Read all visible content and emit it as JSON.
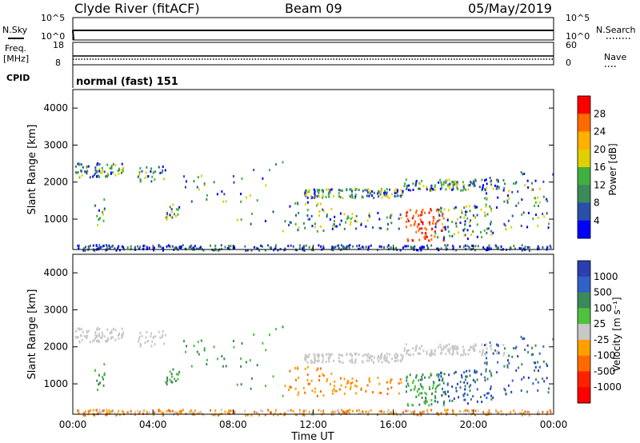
{
  "header": {
    "station": "Clyde River (fitACF)",
    "beam": "Beam 09",
    "date": "05/May/2019"
  },
  "panels": {
    "nsky_label": "N.Sky",
    "nsearch_label": "N.Search",
    "freq_label_1": "Freq.",
    "freq_label_2": "[MHz]",
    "nave_label": "Nave",
    "cpid_label": "CPID",
    "cpid_value": "normal (fast) 151",
    "noise_ticks_left": [
      "10^5",
      "10^0"
    ],
    "noise_ticks_right": [
      "10^5",
      "10^0"
    ],
    "freq_ticks": [
      "18",
      "8"
    ],
    "nave_ticks": [
      "60",
      "0"
    ]
  },
  "chart_data": [
    {
      "type": "heatmap",
      "name": "power",
      "ylabel": "Slant Range [km]",
      "xlabel": "",
      "ylim": [
        180,
        4500
      ],
      "xlim": [
        0,
        24
      ],
      "y_ticks": [
        "1000",
        "2000",
        "3000",
        "4000"
      ],
      "colorbar": {
        "label": "Power [dB]",
        "ticks": [
          "28",
          "24",
          "20",
          "16",
          "12",
          "8",
          "4"
        ],
        "colors": [
          "#ff0000",
          "#ff6a00",
          "#ffb000",
          "#e0d000",
          "#40b040",
          "#3a8a5a",
          "#2a4fa8",
          "#0000ff"
        ]
      }
    },
    {
      "type": "heatmap",
      "name": "velocity",
      "ylabel": "Slant Range [km]",
      "xlabel": "Time UT",
      "ylim": [
        180,
        4500
      ],
      "xlim": [
        0,
        24
      ],
      "y_ticks": [
        "1000",
        "2000",
        "3000",
        "4000"
      ],
      "x_ticks": [
        "00:00",
        "04:00",
        "08:00",
        "12:00",
        "16:00",
        "20:00",
        "00:00"
      ],
      "colorbar": {
        "label": "Velocity [m s⁻¹]",
        "ticks": [
          "1000",
          "500",
          "100",
          "25",
          "-25",
          "-100",
          "-500",
          "-1000"
        ],
        "colors": [
          "#2a3fb0",
          "#3060c8",
          "#3a8a5a",
          "#50c040",
          "#c8c8c8",
          "#ffa000",
          "#ff6a00",
          "#ff2000",
          "#ff0000"
        ]
      }
    }
  ]
}
